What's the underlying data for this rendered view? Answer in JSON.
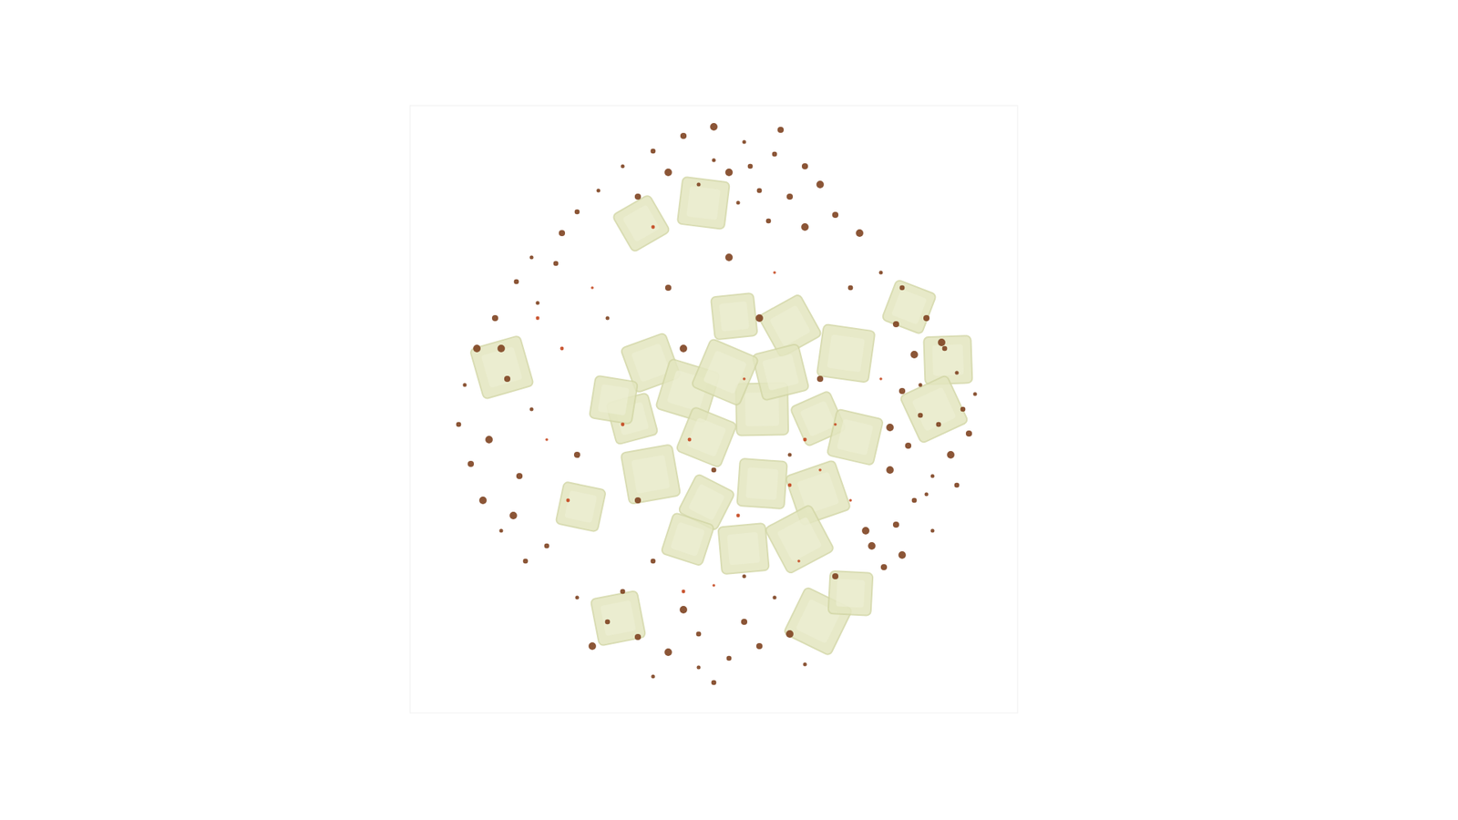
{
  "chart_data": {
    "type": "scatter",
    "tick_labels": false,
    "grid": false,
    "xlim": [
      -100,
      100
    ],
    "ylim": [
      -100,
      100
    ],
    "series": [
      {
        "color": "#e3e6bf",
        "marker": "square",
        "x": [
          -23.9,
          -3.4,
          -69.8,
          64.3,
          77.1,
          72.5,
          -43.8,
          -31.5,
          34.3,
          45.0,
          -20.8,
          -8.6,
          6.7,
          25.1,
          43.5,
          -26.9,
          -2.4,
          15.9,
          34.3,
          46.5,
          -20.8,
          -2.4,
          15.9,
          34.3,
          -8.6,
          9.8,
          28.2,
          -33.0,
          22.0,
          3.7
        ],
        "values": [
          61.2,
          67.9,
          13.8,
          33.7,
          16.2,
          0,
          -32.1,
          -68.8,
          -69.8,
          -60.6,
          15.3,
          6.1,
          30.6,
          27.5,
          18.4,
          -3.1,
          -9.2,
          0,
          -3.1,
          -9.2,
          -21.4,
          -30.6,
          -24.5,
          -27.5,
          -42.8,
          -45.9,
          -42.8,
          3.1,
          12.2,
          12.2
        ]
      },
      {
        "color": "#7e4220",
        "marker": "circle",
        "x": [
          -30,
          -20,
          -10,
          0,
          10,
          20,
          30,
          5,
          -5,
          15,
          25,
          35,
          -38,
          -45,
          40,
          48,
          0,
          12,
          22,
          -15,
          8,
          18,
          -25,
          30,
          55,
          62,
          70,
          75,
          80,
          82,
          84,
          78,
          72,
          66,
          60,
          52,
          68,
          74,
          64,
          58,
          70,
          76,
          60,
          66,
          86,
          80,
          56,
          62,
          72,
          68,
          62,
          58,
          -60,
          -65,
          -72,
          -78,
          -82,
          -84,
          -80,
          -76,
          -70,
          -62,
          -68,
          -74,
          -58,
          -55,
          -64,
          -70,
          -60,
          -52,
          -50,
          -66,
          -45,
          -35,
          -25,
          -15,
          -5,
          5,
          15,
          25,
          -20,
          0,
          10,
          -10,
          20,
          -30,
          40,
          -40,
          30,
          -5,
          -15,
          5,
          -35,
          45,
          -45,
          50,
          10,
          -20,
          35,
          -10,
          25,
          0,
          -25,
          15
        ],
        "values": [
          80,
          85,
          90,
          93,
          88,
          84,
          80,
          78,
          74,
          72,
          70,
          74,
          72,
          65,
          64,
          58,
          82,
          80,
          92,
          78,
          68,
          62,
          70,
          60,
          45,
          40,
          30,
          22,
          12,
          0,
          -8,
          -15,
          -22,
          -30,
          -38,
          -45,
          8,
          -5,
          -12,
          -20,
          -28,
          20,
          28,
          18,
          5,
          -25,
          -52,
          -48,
          -40,
          -2,
          6,
          -6,
          50,
          42,
          30,
          20,
          8,
          -5,
          -18,
          -30,
          -40,
          -50,
          10,
          -10,
          35,
          -45,
          -22,
          20,
          0,
          48,
          58,
          -35,
          -62,
          -70,
          -75,
          -80,
          -85,
          -82,
          -78,
          -74,
          -88,
          -90,
          -70,
          -66,
          -62,
          -60,
          -55,
          -78,
          -84,
          -74,
          40,
          50,
          30,
          40,
          -15,
          -40,
          -55,
          -50,
          10,
          20,
          -15,
          -20,
          -30,
          30
        ]
      },
      {
        "color": "#c4461e",
        "marker": "circle",
        "x": [
          -40,
          -50,
          -55,
          30,
          35,
          25,
          40,
          -10,
          0,
          -58,
          10,
          -30,
          20,
          -8,
          45,
          -20,
          55,
          -48,
          28,
          8
        ],
        "values": [
          40,
          20,
          -10,
          -10,
          -20,
          -25,
          -5,
          -60,
          -58,
          30,
          10,
          -5,
          45,
          -10,
          -30,
          60,
          10,
          -30,
          -50,
          -35
        ]
      }
    ]
  }
}
